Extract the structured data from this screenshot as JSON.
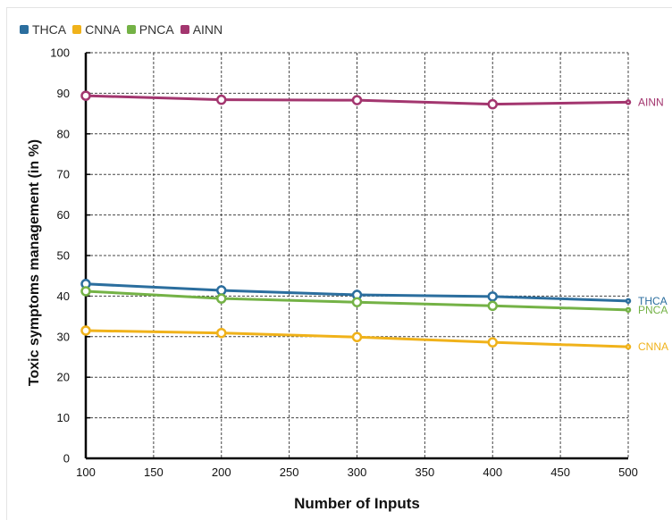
{
  "chart_data": {
    "type": "line",
    "title": "",
    "xlabel": "Number of Inputs",
    "ylabel": "Toxic symptoms management (in %)",
    "xlim": [
      100,
      500
    ],
    "ylim": [
      0,
      100
    ],
    "xticks": [
      100,
      150,
      200,
      250,
      300,
      350,
      400,
      450,
      500
    ],
    "yticks": [
      0,
      10,
      20,
      30,
      40,
      50,
      60,
      70,
      80,
      90,
      100
    ],
    "grid": true,
    "legend_position": "top-left",
    "series": [
      {
        "name": "THCA",
        "color": "#2b6e9e",
        "x": [
          100,
          200,
          300,
          400,
          500
        ],
        "y": [
          43,
          41.4,
          40.3,
          39.9,
          38.8
        ]
      },
      {
        "name": "CNNA",
        "color": "#f0b21a",
        "x": [
          100,
          200,
          300,
          400,
          500
        ],
        "y": [
          31.5,
          30.9,
          29.9,
          28.6,
          27.5
        ]
      },
      {
        "name": "PNCA",
        "color": "#74b246",
        "x": [
          100,
          200,
          300,
          400,
          500
        ],
        "y": [
          41.2,
          39.4,
          38.5,
          37.6,
          36.6
        ]
      },
      {
        "name": "AINN",
        "color": "#a3366f",
        "x": [
          100,
          200,
          300,
          400,
          500
        ],
        "y": [
          89.4,
          88.4,
          88.3,
          87.3,
          87.8
        ]
      }
    ]
  }
}
